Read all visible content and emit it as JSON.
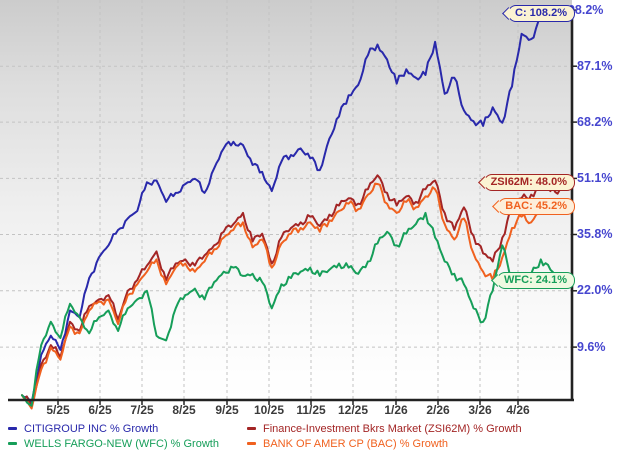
{
  "chart_data": {
    "type": "line",
    "description": "Comparative percentage growth of bank stocks vs industry over ~12 months",
    "x_axis": {
      "tick_labels": [
        "5/25",
        "6/25",
        "7/25",
        "8/25",
        "9/25",
        "10/25",
        "11/25",
        "12/25",
        "1/26",
        "2/26",
        "3/26",
        "4/26"
      ]
    },
    "y_axis": {
      "unit": "% Growth",
      "scale": "log",
      "tick_labels": [
        "108.2%",
        "87.1%",
        "68.2%",
        "51.1%",
        "35.8%",
        "22.0%",
        "9.6%"
      ],
      "tick_values": [
        108.2,
        87.1,
        68.2,
        51.1,
        35.8,
        22.0,
        9.6
      ]
    },
    "colors": {
      "axis": "#222222",
      "gridline": "#c3c3c3",
      "y_tick_text": "#4646cf",
      "x_tick_text": "#3a3a3a"
    },
    "series": [
      {
        "id": "C",
        "label": "CITIGROUP INC % Growth",
        "color": "#2929ab",
        "badge_label": "C: 108.2%",
        "badge_bg": "#fbf3d3",
        "final_value": 108.2,
        "values": [
          0,
          -1.5,
          8,
          12,
          9,
          17.5,
          16,
          25,
          30,
          33,
          37,
          40,
          42,
          50,
          50.5,
          44.5,
          47,
          49.5,
          51,
          47,
          54,
          60,
          62,
          61,
          55,
          53,
          47.5,
          56,
          58,
          60,
          57,
          53.5,
          63,
          70,
          77,
          80.5,
          91,
          95,
          89.5,
          81,
          86,
          83,
          84,
          96,
          77.5,
          83,
          72,
          68.5,
          67,
          73,
          68,
          80,
          99,
          97,
          104,
          107.5,
          108.2
        ]
      },
      {
        "id": "ZSI62M",
        "label": "Finance-Investment Bkrs Market (ZSI62M) % Growth",
        "color": "#a32525",
        "badge_label": "ZSI62M: 48.0%",
        "badge_bg": "#fbf3d3",
        "final_value": 48.0,
        "values": [
          0,
          -2,
          6,
          10,
          7.5,
          15,
          13,
          18.5,
          20,
          21,
          15.5,
          22,
          24.5,
          28,
          31.5,
          24.5,
          28.5,
          29.5,
          28,
          30.5,
          33,
          36.5,
          38.5,
          41.5,
          34,
          36,
          28.5,
          35,
          37.5,
          39,
          40.5,
          38,
          41,
          43.5,
          45.5,
          44,
          48,
          52,
          47,
          43.5,
          46,
          44.5,
          48,
          50.5,
          41.5,
          37,
          43,
          35.5,
          31,
          29,
          35,
          43,
          45.5,
          46.5,
          48.5,
          47.5,
          48.0
        ]
      },
      {
        "id": "BAC",
        "label": "BANK OF AMER CP (BAC) % Growth",
        "color": "#f0611f",
        "badge_label": "BAC: 45.2%",
        "badge_bg": "#fdeeda",
        "final_value": 45.2,
        "values": [
          0,
          -2.5,
          5,
          9.5,
          7,
          14,
          12.5,
          17.5,
          19.5,
          20,
          14.5,
          21,
          23.5,
          26.5,
          29.5,
          23.5,
          27.5,
          28.5,
          26.5,
          29,
          32,
          35,
          37,
          39,
          32.5,
          34.5,
          27.5,
          33.5,
          36,
          37.5,
          39,
          36.5,
          39.5,
          42,
          44,
          42.5,
          46.5,
          49.5,
          44,
          41.5,
          44.5,
          43,
          46,
          48,
          38.5,
          34.5,
          40,
          31,
          26.5,
          24.5,
          30,
          37.5,
          40.5,
          39,
          43,
          44,
          45.2
        ]
      },
      {
        "id": "WFC",
        "label": "WELLS FARGO-NEW (WFC) % Growth",
        "color": "#169e59",
        "badge_label": "WFC: 24.1%",
        "badge_bg": "#eff9e1",
        "final_value": 24.1,
        "values": [
          0,
          -2,
          10,
          15,
          11.5,
          19,
          16,
          12.5,
          16,
          17.5,
          13,
          18,
          20,
          22,
          12,
          11,
          18,
          21,
          22.5,
          20,
          24,
          26.5,
          27.5,
          25.5,
          26,
          24,
          18,
          23.5,
          25,
          26.5,
          27.5,
          25.5,
          27,
          28.5,
          27.5,
          26,
          29,
          33.5,
          36.5,
          33,
          36,
          38.5,
          41.5,
          35,
          29,
          26,
          23.5,
          18,
          15,
          22,
          33,
          25,
          24,
          26,
          29.5,
          27,
          24.1
        ]
      }
    ],
    "legend": {
      "position": "bottom",
      "columns": [
        [
          "C",
          "WFC"
        ],
        [
          "ZSI62M",
          "BAC"
        ]
      ]
    }
  }
}
